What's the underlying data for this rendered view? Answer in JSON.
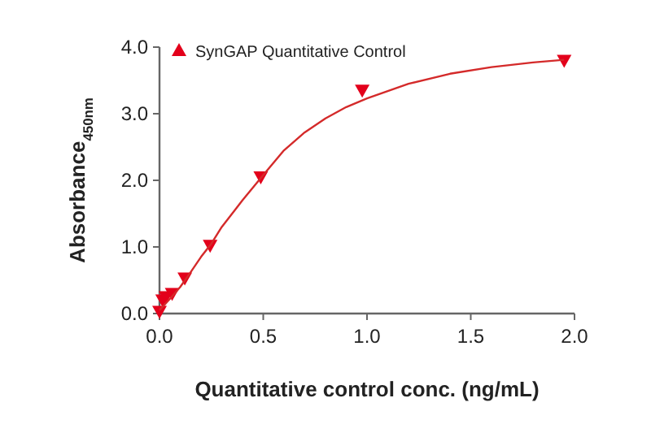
{
  "chart_data": {
    "type": "scatter",
    "xlabel": "Quantitative control conc. (ng/mL)",
    "ylabel": "Absorbance$_{450nm}$",
    "xlim": [
      0,
      2
    ],
    "xticks": [
      {
        "value": 0,
        "label": "0.0"
      },
      {
        "value": 0.5,
        "label": "0.5"
      },
      {
        "value": 1,
        "label": "1.0"
      },
      {
        "value": 1.5,
        "label": "1.5"
      },
      {
        "value": 2,
        "label": "2.0"
      }
    ],
    "ylim": [
      0,
      4
    ],
    "yticks": [
      {
        "value": 0,
        "label": "0.0"
      },
      {
        "value": 1,
        "label": "1.0"
      },
      {
        "value": 2,
        "label": "2.0"
      },
      {
        "value": 3,
        "label": "3.0"
      },
      {
        "value": 4,
        "label": "4.0"
      }
    ],
    "grid": false,
    "legend": "top left",
    "series": [
      {
        "name": "SynGAP Quantitative Control",
        "color": "#e3001b",
        "marker": "triangle",
        "x": [
          0,
          0.015,
          0.031,
          0.061,
          0.122,
          0.244,
          0.488,
          0.977,
          1.95
        ],
        "values": [
          0.03,
          0.2,
          0.25,
          0.3,
          0.53,
          1.02,
          2.05,
          3.35,
          3.8
        ]
      },
      {
        "type": "line",
        "color": "#d42a2a",
        "x": [
          0,
          0.05,
          0.1,
          0.15,
          0.2,
          0.25,
          0.3,
          0.4,
          0.5,
          0.6,
          0.7,
          0.8,
          0.9,
          1.0,
          1.2,
          1.4,
          1.6,
          1.8,
          1.95
        ],
        "values": [
          0.05,
          0.22,
          0.4,
          0.62,
          0.85,
          1.05,
          1.3,
          1.7,
          2.08,
          2.45,
          2.72,
          2.93,
          3.1,
          3.23,
          3.45,
          3.6,
          3.7,
          3.77,
          3.81
        ]
      }
    ]
  }
}
